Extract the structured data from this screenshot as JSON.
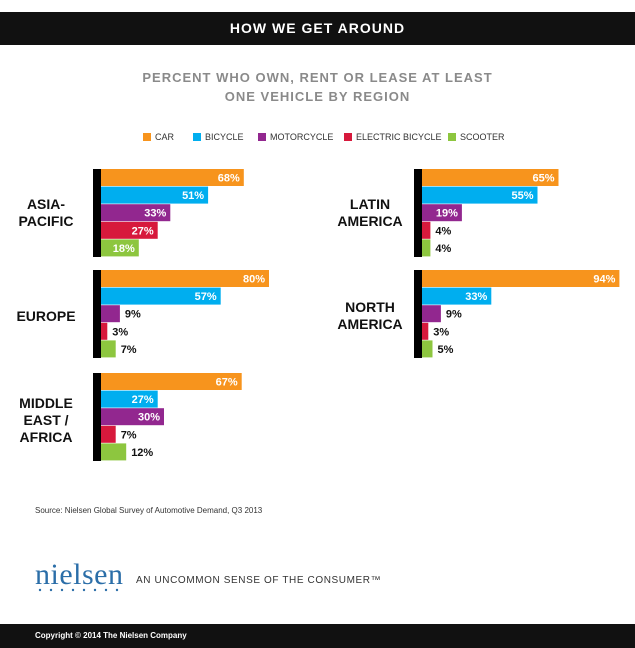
{
  "header": {
    "title": "HOW WE GET AROUND"
  },
  "subtitle": {
    "line1": "PERCENT WHO OWN, RENT OR LEASE AT LEAST",
    "line2": "ONE VEHICLE BY REGION"
  },
  "colors": {
    "car": "#f7941d",
    "bicycle": "#00aeef",
    "motorcycle": "#92278f",
    "electric_bicycle": "#d7193c",
    "scooter": "#8dc63f"
  },
  "legend": [
    {
      "label": "CAR",
      "color_key": "car"
    },
    {
      "label": "BICYCLE",
      "color_key": "bicycle"
    },
    {
      "label": "MOTORCYCLE",
      "color_key": "motorcycle"
    },
    {
      "label": "ELECTRIC BICYCLE",
      "color_key": "electric_bicycle"
    },
    {
      "label": "SCOOTER",
      "color_key": "scooter"
    }
  ],
  "chart_data": {
    "type": "bar",
    "orientation": "horizontal",
    "series_order": [
      "car",
      "bicycle",
      "motorcycle",
      "electric_bicycle",
      "scooter"
    ],
    "series_names": [
      "CAR",
      "BICYCLE",
      "MOTORCYCLE",
      "ELECTRIC BICYCLE",
      "SCOOTER"
    ],
    "unit": "%",
    "regions": [
      {
        "label_lines": [
          "ASIA-",
          "PACIFIC"
        ],
        "values": [
          68,
          51,
          33,
          27,
          18
        ],
        "labels": [
          "68%",
          "51%",
          "33%",
          "27%",
          "18%"
        ]
      },
      {
        "label_lines": [
          "EUROPE"
        ],
        "values": [
          80,
          57,
          9,
          3,
          7
        ],
        "labels": [
          "80%",
          "57%",
          "9%",
          "3%",
          "7%"
        ]
      },
      {
        "label_lines": [
          "MIDDLE",
          "EAST /",
          "AFRICA"
        ],
        "values": [
          67,
          27,
          30,
          7,
          12
        ],
        "labels": [
          "67%",
          "27%",
          "30%",
          "7%",
          "12%"
        ]
      },
      {
        "label_lines": [
          "LATIN",
          "AMERICA"
        ],
        "values": [
          65,
          55,
          19,
          4,
          4
        ],
        "labels": [
          "65%",
          "55%",
          "19%",
          "4%",
          "4%"
        ]
      },
      {
        "label_lines": [
          "NORTH",
          "AMERICA"
        ],
        "values": [
          94,
          33,
          9,
          3,
          5
        ],
        "labels": [
          "94%",
          "33%",
          "9%",
          "3%",
          "5%"
        ]
      }
    ]
  },
  "source": "Source: Nielsen Global Survey of Automotive Demand, Q3 2013",
  "brand": {
    "logo_text": "nielsen",
    "tagline": "AN UNCOMMON SENSE OF THE CONSUMER™"
  },
  "footer": {
    "copyright": "Copyright © 2014 The Nielsen Company"
  }
}
